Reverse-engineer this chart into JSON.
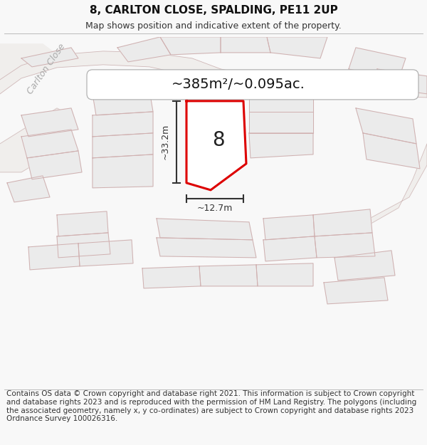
{
  "title": "8, CARLTON CLOSE, SPALDING, PE11 2UP",
  "subtitle": "Map shows position and indicative extent of the property.",
  "area_label": "~385m²/~0.095ac.",
  "plot_number": "8",
  "dim_width": "~12.7m",
  "dim_height": "~33.2m",
  "road_label": "Carlton Close",
  "road_label2": "Carlton Close",
  "footer": "Contains OS data © Crown copyright and database right 2021. This information is subject to Crown copyright and database rights 2023 and is reproduced with the permission of HM Land Registry. The polygons (including the associated geometry, namely x, y co-ordinates) are subject to Crown copyright and database rights 2023 Ordnance Survey 100026316.",
  "bg_color": "#f8f8f8",
  "map_bg": "#ffffff",
  "plot_fill": "#ffffff",
  "plot_edge": "#dd0000",
  "neighbor_fill": "#ebebeb",
  "neighbor_edge": "#d0b0b0",
  "road_color": "#f0eeec",
  "road_edge": "#d0b8b8",
  "pill_bg": "#ffffff",
  "pill_edge": "#aaaaaa",
  "area_color": "#111111",
  "road_label_color": "#bbbbbb",
  "dim_color": "#333333",
  "arrow_color": "#333333",
  "title_fontsize": 11,
  "subtitle_fontsize": 9,
  "footer_fontsize": 7.5,
  "map_xlim": [
    0,
    600
  ],
  "map_ylim": [
    0,
    490
  ]
}
